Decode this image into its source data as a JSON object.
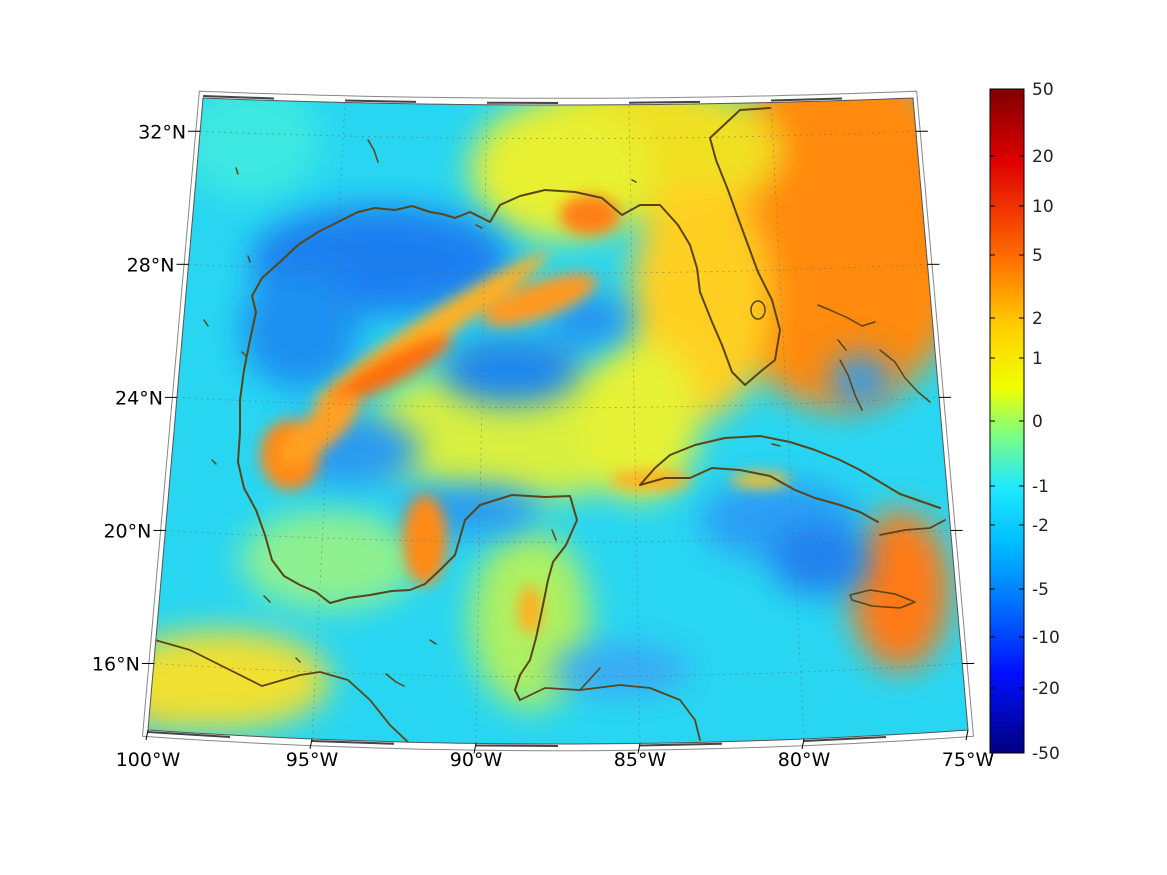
{
  "map": {
    "projection": "conic",
    "extent": {
      "lon": [
        -100,
        -75
      ],
      "lat": [
        14,
        33
      ]
    },
    "longitude_ticks": [
      {
        "value": -100,
        "label": "100°W"
      },
      {
        "value": -95,
        "label": "95°W"
      },
      {
        "value": -90,
        "label": "90°W"
      },
      {
        "value": -85,
        "label": "85°W"
      },
      {
        "value": -80,
        "label": "80°W"
      },
      {
        "value": -75,
        "label": "75°W"
      }
    ],
    "latitude_ticks": [
      {
        "value": 32,
        "label": "32°N"
      },
      {
        "value": 28,
        "label": "28°N"
      },
      {
        "value": 24,
        "label": "24°N"
      },
      {
        "value": 20,
        "label": "20°N"
      },
      {
        "value": 16,
        "label": "16°N"
      }
    ],
    "gridlines": "dotted",
    "coastline_color": "#5a4418",
    "colormap": "jet",
    "colorbar": {
      "position": "right",
      "ticks": [
        "50",
        "20",
        "10",
        "5",
        "2",
        "1",
        "0",
        "-1",
        "-2",
        "-5",
        "-10",
        "-20",
        "-50"
      ]
    }
  }
}
